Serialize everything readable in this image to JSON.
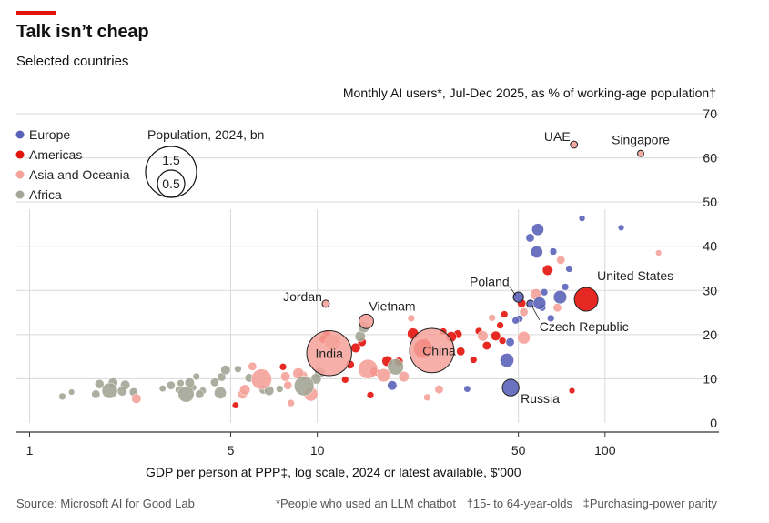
{
  "header": {
    "title": "Talk isn’t cheap",
    "subtitle": "Selected countries"
  },
  "footer": {
    "source": "Source: Microsoft AI for Good Lab",
    "note1": "*People who used an LLM chatbot",
    "note2": "†15- to 64-year-olds",
    "note3": "‡Purchasing-power parity"
  },
  "colors": {
    "Europe": "#5b63b8",
    "Americas": "#e3120b",
    "Asia and Oceania": "#f4a29a",
    "Africa": "#a3a595",
    "accent": "#e3120b",
    "gridline": "#d9d9d9",
    "axis": "#333333"
  },
  "chart_data": {
    "type": "scatter",
    "title": "Monthly AI users*, Jul-Dec 2025, as % of working-age population†",
    "xlabel": "GDP per person at PPP‡, log scale, 2024 or latest available, $'000",
    "ylabel": "Monthly AI users*, Jul-Dec 2025, as % of working-age population†",
    "x_scale": "log",
    "xlim": [
      0.9,
      200
    ],
    "ylim": [
      0,
      70
    ],
    "x_ticks": [
      1,
      5,
      10,
      50,
      100
    ],
    "y_ticks": [
      0,
      10,
      20,
      30,
      40,
      50,
      60,
      70
    ],
    "grid": true,
    "legend": {
      "regions": [
        "Europe",
        "Americas",
        "Asia and Oceania",
        "Africa"
      ],
      "size_title": "Population, 2024, bn",
      "size_values": [
        1.5,
        0.5
      ]
    },
    "labeled_points": [
      {
        "name": "UAE",
        "x": 78,
        "y": 63,
        "pop": 0.01,
        "region": "Asia and Oceania"
      },
      {
        "name": "Singapore",
        "x": 133,
        "y": 61,
        "pop": 0.006,
        "region": "Asia and Oceania"
      },
      {
        "name": "Poland",
        "x": 50,
        "y": 28.5,
        "pop": 0.037,
        "region": "Europe"
      },
      {
        "name": "Czech Republic",
        "x": 55,
        "y": 27,
        "pop": 0.011,
        "region": "Europe"
      },
      {
        "name": "United States",
        "x": 86,
        "y": 28,
        "pop": 0.34,
        "region": "Americas"
      },
      {
        "name": "Russia",
        "x": 47,
        "y": 8,
        "pop": 0.144,
        "region": "Europe"
      },
      {
        "name": "Jordan",
        "x": 10.7,
        "y": 27,
        "pop": 0.011,
        "region": "Asia and Oceania"
      },
      {
        "name": "Vietnam",
        "x": 14.8,
        "y": 23,
        "pop": 0.1,
        "region": "Asia and Oceania"
      },
      {
        "name": "India",
        "x": 11,
        "y": 15.8,
        "pop": 1.45,
        "region": "Asia and Oceania"
      },
      {
        "name": "China",
        "x": 25,
        "y": 16.4,
        "pop": 1.41,
        "region": "Asia and Oceania"
      }
    ],
    "points": [
      {
        "x": 1.3,
        "y": 6,
        "pop": 0.01,
        "region": "Africa"
      },
      {
        "x": 1.4,
        "y": 7,
        "pop": 0.005,
        "region": "Africa"
      },
      {
        "x": 1.7,
        "y": 6.5,
        "pop": 0.02,
        "region": "Africa"
      },
      {
        "x": 1.75,
        "y": 8.8,
        "pop": 0.025,
        "region": "Africa"
      },
      {
        "x": 1.9,
        "y": 7.3,
        "pop": 0.12,
        "region": "Africa"
      },
      {
        "x": 1.95,
        "y": 9.1,
        "pop": 0.03,
        "region": "Africa"
      },
      {
        "x": 2.1,
        "y": 7.2,
        "pop": 0.03,
        "region": "Africa"
      },
      {
        "x": 2.15,
        "y": 8.6,
        "pop": 0.03,
        "region": "Africa"
      },
      {
        "x": 2.3,
        "y": 7,
        "pop": 0.02,
        "region": "Africa"
      },
      {
        "x": 2.35,
        "y": 5.5,
        "pop": 0.03,
        "region": "Asia and Oceania"
      },
      {
        "x": 2.9,
        "y": 7.8,
        "pop": 0.008,
        "region": "Africa"
      },
      {
        "x": 3.1,
        "y": 8.5,
        "pop": 0.02,
        "region": "Africa"
      },
      {
        "x": 3.3,
        "y": 7.5,
        "pop": 0.01,
        "region": "Africa"
      },
      {
        "x": 3.35,
        "y": 9,
        "pop": 0.01,
        "region": "Africa"
      },
      {
        "x": 3.5,
        "y": 6.5,
        "pop": 0.13,
        "region": "Africa"
      },
      {
        "x": 3.6,
        "y": 9.1,
        "pop": 0.03,
        "region": "Africa"
      },
      {
        "x": 3.7,
        "y": 8,
        "pop": 0.01,
        "region": "Africa"
      },
      {
        "x": 3.8,
        "y": 10.5,
        "pop": 0.01,
        "region": "Africa"
      },
      {
        "x": 3.9,
        "y": 6.5,
        "pop": 0.02,
        "region": "Africa"
      },
      {
        "x": 4.0,
        "y": 7.3,
        "pop": 0.01,
        "region": "Africa"
      },
      {
        "x": 4.4,
        "y": 9.2,
        "pop": 0.02,
        "region": "Africa"
      },
      {
        "x": 4.6,
        "y": 6.8,
        "pop": 0.06,
        "region": "Africa"
      },
      {
        "x": 4.65,
        "y": 10.4,
        "pop": 0.02,
        "region": "Africa"
      },
      {
        "x": 4.8,
        "y": 12,
        "pop": 0.03,
        "region": "Africa"
      },
      {
        "x": 5.2,
        "y": 4,
        "pop": 0.008,
        "region": "Americas"
      },
      {
        "x": 5.3,
        "y": 12.2,
        "pop": 0.01,
        "region": "Africa"
      },
      {
        "x": 5.5,
        "y": 6.5,
        "pop": 0.03,
        "region": "Asia and Oceania"
      },
      {
        "x": 5.6,
        "y": 7.5,
        "pop": 0.04,
        "region": "Asia and Oceania"
      },
      {
        "x": 5.8,
        "y": 10.2,
        "pop": 0.02,
        "region": "Africa"
      },
      {
        "x": 5.95,
        "y": 12.8,
        "pop": 0.02,
        "region": "Asia and Oceania"
      },
      {
        "x": 6.4,
        "y": 9.9,
        "pop": 0.24,
        "region": "Asia and Oceania"
      },
      {
        "x": 6.5,
        "y": 7.5,
        "pop": 0.02,
        "region": "Africa"
      },
      {
        "x": 6.8,
        "y": 7.3,
        "pop": 0.03,
        "region": "Africa"
      },
      {
        "x": 7.4,
        "y": 7.7,
        "pop": 0.01,
        "region": "Africa"
      },
      {
        "x": 7.6,
        "y": 12.7,
        "pop": 0.01,
        "region": "Americas"
      },
      {
        "x": 7.75,
        "y": 10.5,
        "pop": 0.03,
        "region": "Asia and Oceania"
      },
      {
        "x": 7.9,
        "y": 8.5,
        "pop": 0.02,
        "region": "Asia and Oceania"
      },
      {
        "x": 8.1,
        "y": 4.5,
        "pop": 0.01,
        "region": "Asia and Oceania"
      },
      {
        "x": 8.6,
        "y": 11.2,
        "pop": 0.05,
        "region": "Asia and Oceania"
      },
      {
        "x": 8.9,
        "y": 10.7,
        "pop": 0.03,
        "region": "Asia and Oceania"
      },
      {
        "x": 9.0,
        "y": 8.4,
        "pop": 0.22,
        "region": "Africa"
      },
      {
        "x": 9.5,
        "y": 6.5,
        "pop": 0.09,
        "region": "Asia and Oceania"
      },
      {
        "x": 9.9,
        "y": 10,
        "pop": 0.04,
        "region": "Africa"
      },
      {
        "x": 10.2,
        "y": 11.4,
        "pop": 0.04,
        "region": "Africa"
      },
      {
        "x": 10.5,
        "y": 19,
        "pop": 0.02,
        "region": "Americas"
      },
      {
        "x": 10.8,
        "y": 20.1,
        "pop": 0.02,
        "region": "Americas"
      },
      {
        "x": 11.3,
        "y": 18.3,
        "pop": 0.12,
        "region": "Asia and Oceania"
      },
      {
        "x": 12.5,
        "y": 9.8,
        "pop": 0.01,
        "region": "Americas"
      },
      {
        "x": 13.0,
        "y": 13.2,
        "pop": 0.02,
        "region": "Americas"
      },
      {
        "x": 13.6,
        "y": 17,
        "pop": 0.03,
        "region": "Americas"
      },
      {
        "x": 14.1,
        "y": 19.6,
        "pop": 0.04,
        "region": "Africa"
      },
      {
        "x": 14.3,
        "y": 18.3,
        "pop": 0.02,
        "region": "Americas"
      },
      {
        "x": 14.5,
        "y": 21.7,
        "pop": 0.05,
        "region": "Africa"
      },
      {
        "x": 15.0,
        "y": 12.2,
        "pop": 0.21,
        "region": "Asia and Oceania"
      },
      {
        "x": 15.3,
        "y": 6.3,
        "pop": 0.01,
        "region": "Americas"
      },
      {
        "x": 15.8,
        "y": 11.6,
        "pop": 0.02,
        "region": "Americas"
      },
      {
        "x": 17.0,
        "y": 10.8,
        "pop": 0.08,
        "region": "Asia and Oceania"
      },
      {
        "x": 17.5,
        "y": 14,
        "pop": 0.04,
        "region": "Americas"
      },
      {
        "x": 18.2,
        "y": 8.5,
        "pop": 0.03,
        "region": "Europe"
      },
      {
        "x": 18.7,
        "y": 12.7,
        "pop": 0.13,
        "region": "Africa"
      },
      {
        "x": 19.2,
        "y": 13.9,
        "pop": 0.02,
        "region": "Americas"
      },
      {
        "x": 20.0,
        "y": 10.5,
        "pop": 0.04,
        "region": "Asia and Oceania"
      },
      {
        "x": 21.2,
        "y": 23.7,
        "pop": 0.01,
        "region": "Asia and Oceania"
      },
      {
        "x": 21.5,
        "y": 20.2,
        "pop": 0.05,
        "region": "Americas"
      },
      {
        "x": 23.3,
        "y": 16.8,
        "pop": 0.2,
        "region": "Americas"
      },
      {
        "x": 23.8,
        "y": 18.3,
        "pop": 0.01,
        "region": "Americas"
      },
      {
        "x": 24.1,
        "y": 5.8,
        "pop": 0.01,
        "region": "Asia and Oceania"
      },
      {
        "x": 26.5,
        "y": 7.6,
        "pop": 0.02,
        "region": "Asia and Oceania"
      },
      {
        "x": 27.4,
        "y": 20.7,
        "pop": 0.01,
        "region": "Americas"
      },
      {
        "x": 29.2,
        "y": 19.5,
        "pop": 0.04,
        "region": "Americas"
      },
      {
        "x": 30.8,
        "y": 20.1,
        "pop": 0.02,
        "region": "Americas"
      },
      {
        "x": 31.5,
        "y": 16.2,
        "pop": 0.02,
        "region": "Americas"
      },
      {
        "x": 33.2,
        "y": 7.7,
        "pop": 0.008,
        "region": "Europe"
      },
      {
        "x": 34.9,
        "y": 14.3,
        "pop": 0.01,
        "region": "Americas"
      },
      {
        "x": 36.4,
        "y": 20.8,
        "pop": 0.01,
        "region": "Americas"
      },
      {
        "x": 37.6,
        "y": 19.7,
        "pop": 0.04,
        "region": "Asia and Oceania"
      },
      {
        "x": 38.8,
        "y": 17.5,
        "pop": 0.02,
        "region": "Americas"
      },
      {
        "x": 40.5,
        "y": 23.8,
        "pop": 0.01,
        "region": "Asia and Oceania"
      },
      {
        "x": 41.7,
        "y": 19.7,
        "pop": 0.03,
        "region": "Americas"
      },
      {
        "x": 43.2,
        "y": 22.1,
        "pop": 0.01,
        "region": "Americas"
      },
      {
        "x": 44.0,
        "y": 18.6,
        "pop": 0.01,
        "region": "Americas"
      },
      {
        "x": 44.7,
        "y": 24.6,
        "pop": 0.01,
        "region": "Americas"
      },
      {
        "x": 45.6,
        "y": 14.2,
        "pop": 0.09,
        "region": "Europe"
      },
      {
        "x": 46.8,
        "y": 18.3,
        "pop": 0.02,
        "region": "Europe"
      },
      {
        "x": 48.9,
        "y": 23.2,
        "pop": 0.01,
        "region": "Europe"
      },
      {
        "x": 50.4,
        "y": 23.6,
        "pop": 0.01,
        "region": "Europe"
      },
      {
        "x": 51.3,
        "y": 27.1,
        "pop": 0.02,
        "region": "Americas"
      },
      {
        "x": 52.2,
        "y": 19.3,
        "pop": 0.07,
        "region": "Asia and Oceania"
      },
      {
        "x": 52.2,
        "y": 25.1,
        "pop": 0.02,
        "region": "Asia and Oceania"
      },
      {
        "x": 54.9,
        "y": 41.9,
        "pop": 0.02,
        "region": "Europe"
      },
      {
        "x": 57.5,
        "y": 29.1,
        "pop": 0.05,
        "region": "Asia and Oceania"
      },
      {
        "x": 57.9,
        "y": 38.7,
        "pop": 0.06,
        "region": "Europe"
      },
      {
        "x": 58.4,
        "y": 43.8,
        "pop": 0.06,
        "region": "Europe"
      },
      {
        "x": 59.2,
        "y": 27.1,
        "pop": 0.07,
        "region": "Europe"
      },
      {
        "x": 60.5,
        "y": 26.1,
        "pop": 0.01,
        "region": "Europe"
      },
      {
        "x": 61.5,
        "y": 29.6,
        "pop": 0.01,
        "region": "Europe"
      },
      {
        "x": 63.2,
        "y": 34.6,
        "pop": 0.04,
        "region": "Americas"
      },
      {
        "x": 64.8,
        "y": 23.7,
        "pop": 0.01,
        "region": "Europe"
      },
      {
        "x": 66.1,
        "y": 38.8,
        "pop": 0.01,
        "region": "Europe"
      },
      {
        "x": 68.3,
        "y": 26.1,
        "pop": 0.02,
        "region": "Asia and Oceania"
      },
      {
        "x": 69.8,
        "y": 28.5,
        "pop": 0.08,
        "region": "Europe"
      },
      {
        "x": 70.2,
        "y": 36.9,
        "pop": 0.02,
        "region": "Asia and Oceania"
      },
      {
        "x": 72.7,
        "y": 30.8,
        "pop": 0.01,
        "region": "Europe"
      },
      {
        "x": 75.1,
        "y": 34.9,
        "pop": 0.01,
        "region": "Europe"
      },
      {
        "x": 76.8,
        "y": 7.3,
        "pop": 0.005,
        "region": "Americas"
      },
      {
        "x": 83.2,
        "y": 46.3,
        "pop": 0.006,
        "region": "Europe"
      },
      {
        "x": 113.8,
        "y": 44.2,
        "pop": 0.005,
        "region": "Europe"
      },
      {
        "x": 153.5,
        "y": 38.5,
        "pop": 0.005,
        "region": "Asia and Oceania"
      }
    ]
  }
}
